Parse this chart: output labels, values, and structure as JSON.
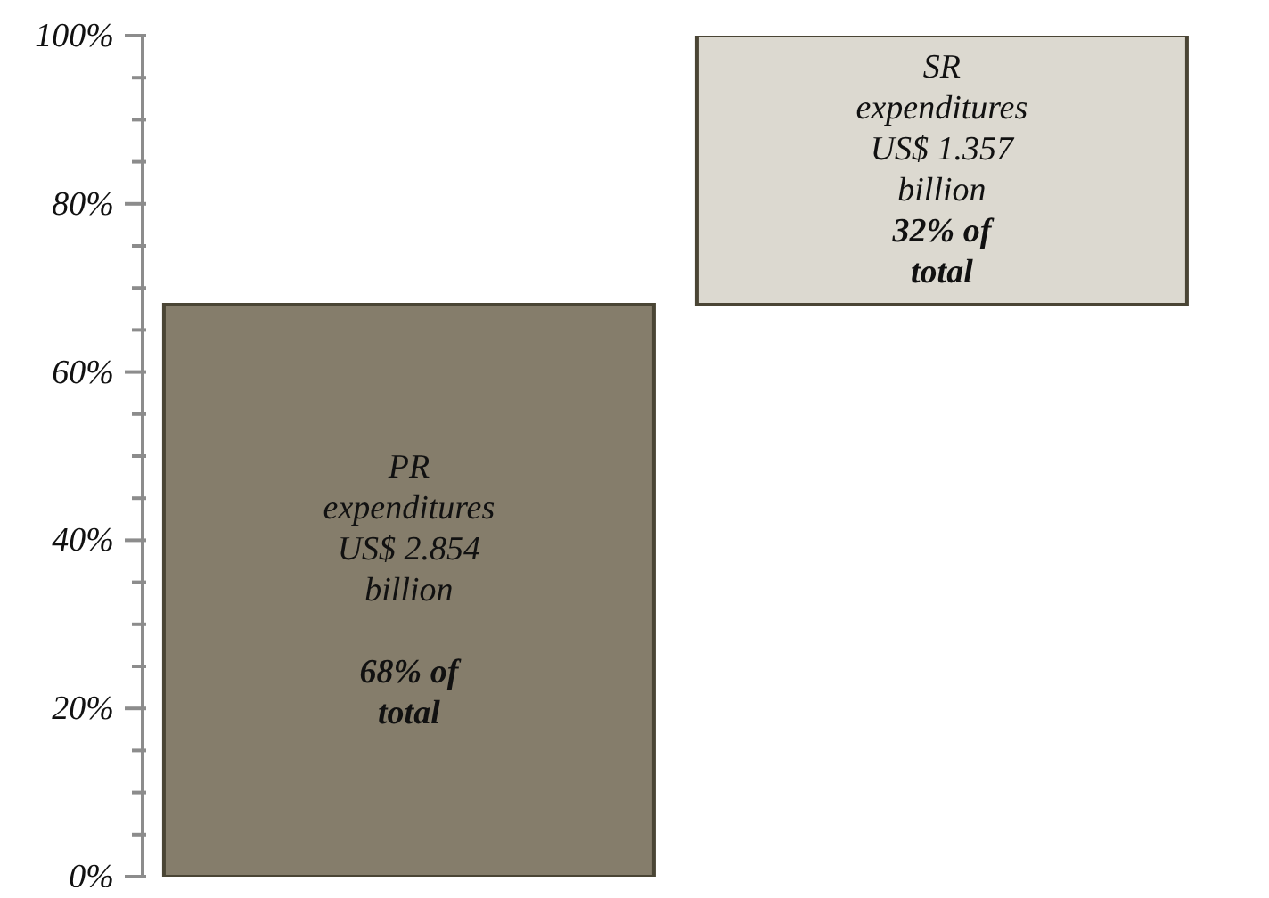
{
  "chart_data": {
    "type": "bar",
    "categories": [
      null,
      null
    ],
    "base": [
      0,
      68
    ],
    "values": [
      68,
      32
    ],
    "colors": [
      "#857d6b",
      "#dcd9d0"
    ],
    "value_labels": [
      "PR\nexpenditures\nUS$ 2.854\nbillion\n\n68% of\ntotal",
      "SR\nexpenditures\nUS$ 1.357\nbillion\n32% of\ntotal"
    ],
    "ylim": [
      0,
      100
    ],
    "yticks": [
      {
        "value": 0,
        "label": "0%"
      },
      {
        "value": 5,
        "label": null
      },
      {
        "value": 10,
        "label": null
      },
      {
        "value": 15,
        "label": null
      },
      {
        "value": 20,
        "label": "20%"
      },
      {
        "value": 25,
        "label": null
      },
      {
        "value": 30,
        "label": null
      },
      {
        "value": 35,
        "label": null
      },
      {
        "value": 40,
        "label": "40%"
      },
      {
        "value": 45,
        "label": null
      },
      {
        "value": 50,
        "label": null
      },
      {
        "value": 55,
        "label": null
      },
      {
        "value": 60,
        "label": "60%"
      },
      {
        "value": 65,
        "label": null
      },
      {
        "value": 70,
        "label": null
      },
      {
        "value": 75,
        "label": null
      },
      {
        "value": 80,
        "label": "80%"
      },
      {
        "value": 85,
        "label": null
      },
      {
        "value": 90,
        "label": null
      },
      {
        "value": 95,
        "label": null
      },
      {
        "value": 100,
        "label": "100%"
      }
    ],
    "grid": false,
    "legend": false
  }
}
